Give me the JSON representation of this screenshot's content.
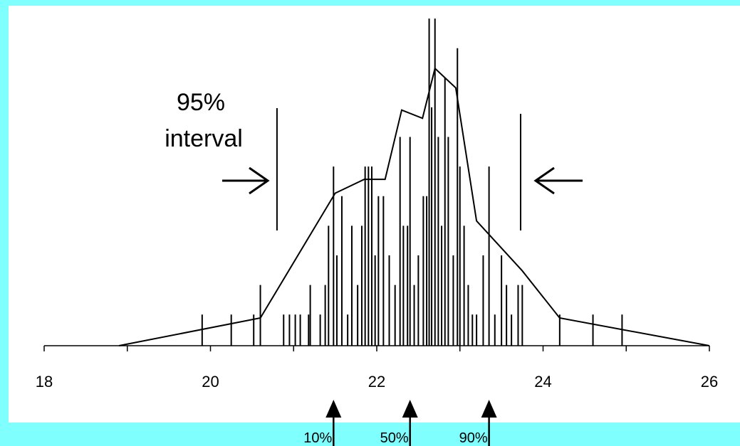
{
  "chart_data": {
    "type": "histogram-with-sample-ticks",
    "x_axis": {
      "range": [
        18,
        26
      ],
      "ticks": [
        18,
        19,
        20,
        21,
        22,
        23,
        24,
        25,
        26
      ],
      "tick_labels": [
        "18",
        "20",
        "22",
        "24",
        "26"
      ],
      "tick_label_values": [
        18,
        20,
        22,
        24,
        26
      ]
    },
    "y_axis": {
      "range": [
        0,
        10
      ]
    },
    "grid": false,
    "frequency_polygon": {
      "x": [
        18.9,
        20.6,
        21.5,
        21.85,
        22.1,
        22.3,
        22.55,
        22.7,
        22.95,
        23.2,
        23.75,
        24.2,
        26.0
      ],
      "y": [
        0,
        1,
        5.5,
        6,
        6,
        8.5,
        8.2,
        10,
        9.3,
        4.5,
        2.7,
        1,
        0
      ]
    },
    "samples": [
      {
        "x": 19.9,
        "h": 1
      },
      {
        "x": 20.25,
        "h": 1
      },
      {
        "x": 20.52,
        "h": 1
      },
      {
        "x": 20.6,
        "h": 2
      },
      {
        "x": 20.88,
        "h": 1
      },
      {
        "x": 20.95,
        "h": 1
      },
      {
        "x": 21.02,
        "h": 1
      },
      {
        "x": 21.08,
        "h": 1
      },
      {
        "x": 21.18,
        "h": 1
      },
      {
        "x": 21.2,
        "h": 2
      },
      {
        "x": 21.32,
        "h": 1
      },
      {
        "x": 21.38,
        "h": 2
      },
      {
        "x": 21.42,
        "h": 4
      },
      {
        "x": 21.48,
        "h": 6
      },
      {
        "x": 21.52,
        "h": 3
      },
      {
        "x": 21.58,
        "h": 5
      },
      {
        "x": 21.65,
        "h": 1
      },
      {
        "x": 21.7,
        "h": 4
      },
      {
        "x": 21.77,
        "h": 2
      },
      {
        "x": 21.82,
        "h": 4
      },
      {
        "x": 21.86,
        "h": 6
      },
      {
        "x": 21.9,
        "h": 6
      },
      {
        "x": 21.94,
        "h": 6
      },
      {
        "x": 21.98,
        "h": 3
      },
      {
        "x": 22.02,
        "h": 5
      },
      {
        "x": 22.08,
        "h": 5
      },
      {
        "x": 22.15,
        "h": 3
      },
      {
        "x": 22.22,
        "h": 2
      },
      {
        "x": 22.28,
        "h": 7
      },
      {
        "x": 22.32,
        "h": 4
      },
      {
        "x": 22.37,
        "h": 4
      },
      {
        "x": 22.4,
        "h": 7
      },
      {
        "x": 22.45,
        "h": 2
      },
      {
        "x": 22.5,
        "h": 3
      },
      {
        "x": 22.56,
        "h": 5
      },
      {
        "x": 22.6,
        "h": 5
      },
      {
        "x": 22.63,
        "h": 11
      },
      {
        "x": 22.66,
        "h": 8
      },
      {
        "x": 22.7,
        "h": 11
      },
      {
        "x": 22.74,
        "h": 7
      },
      {
        "x": 22.78,
        "h": 4
      },
      {
        "x": 22.82,
        "h": 9
      },
      {
        "x": 22.86,
        "h": 7
      },
      {
        "x": 22.92,
        "h": 3
      },
      {
        "x": 22.97,
        "h": 10
      },
      {
        "x": 23.0,
        "h": 6
      },
      {
        "x": 23.05,
        "h": 4
      },
      {
        "x": 23.1,
        "h": 2
      },
      {
        "x": 23.15,
        "h": 1
      },
      {
        "x": 23.2,
        "h": 1
      },
      {
        "x": 23.28,
        "h": 3
      },
      {
        "x": 23.35,
        "h": 6
      },
      {
        "x": 23.42,
        "h": 1
      },
      {
        "x": 23.5,
        "h": 3
      },
      {
        "x": 23.56,
        "h": 2
      },
      {
        "x": 23.62,
        "h": 1
      },
      {
        "x": 23.7,
        "h": 2
      },
      {
        "x": 23.75,
        "h": 2
      },
      {
        "x": 24.2,
        "h": 1
      },
      {
        "x": 24.6,
        "h": 1
      },
      {
        "x": 24.95,
        "h": 1
      }
    ],
    "interval": {
      "label_line1": "95%",
      "label_line2": "interval",
      "lower": 20.8,
      "upper": 23.73
    },
    "percentiles": [
      {
        "label": "10%",
        "x": 21.48
      },
      {
        "label": "50%",
        "x": 22.4
      },
      {
        "label": "90%",
        "x": 23.35
      }
    ],
    "colors": {
      "frame": "#80ffff",
      "ink": "#000000",
      "background": "#ffffff"
    }
  }
}
